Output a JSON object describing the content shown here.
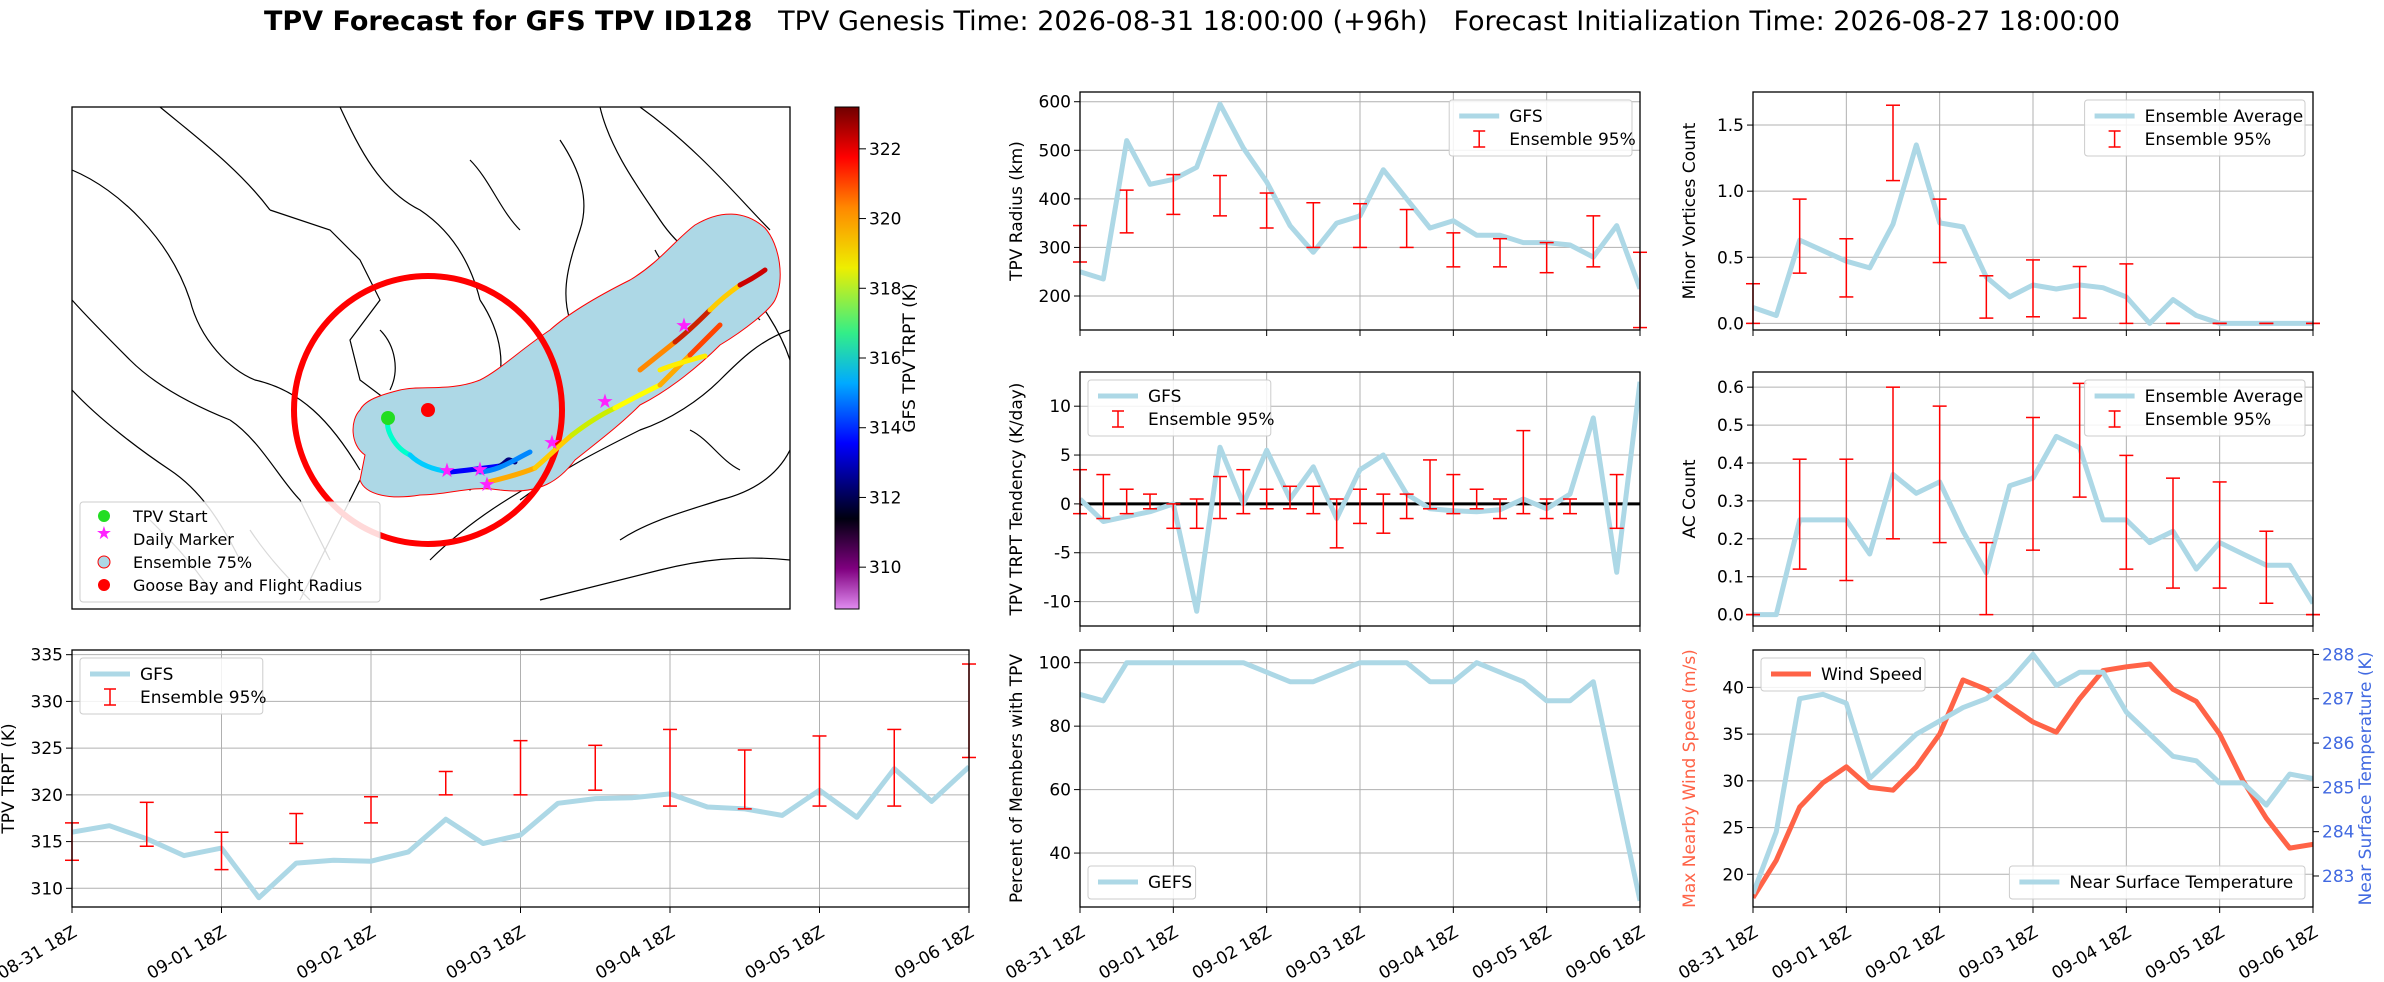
{
  "figure": {
    "title_bold": "TPV Forecast for GFS TPV ID128",
    "title_genesis": "TPV Genesis Time: 2026-08-31 18:00:00 (+96h)",
    "title_init": "Forecast Initialization Time: 2026-08-27 18:00:00"
  },
  "time_ticks": [
    "08-31 18Z",
    "09-01 18Z",
    "09-02 18Z",
    "09-03 18Z",
    "09-04 18Z",
    "09-05 18Z",
    "09-06 18Z"
  ],
  "map": {
    "colorbar": {
      "label": "GFS TPV TRPT (K)",
      "ticks": [
        310,
        312,
        314,
        316,
        318,
        320,
        322
      ],
      "range": [
        308.8,
        323.2
      ]
    },
    "legend": [
      "TPV Start",
      "Daily Marker",
      "Ensemble 75%",
      "Goose Bay and Flight Radius"
    ],
    "colors": {
      "start": "#22dd22",
      "daily": "#ff22ff",
      "ensemble": "#add8e6",
      "goose_bay": "#ff0000"
    }
  },
  "chart_data": [
    {
      "id": "radius",
      "type": "line",
      "ylabel": "TPV Radius (km)",
      "ylim": [
        130,
        620
      ],
      "yticks": [
        200,
        300,
        400,
        500,
        600
      ],
      "legend": [
        "GFS",
        "Ensemble 95%"
      ],
      "legend_pos": "top-right",
      "series": [
        {
          "name": "GFS",
          "color": "#add8e6",
          "values": [
            250,
            235,
            520,
            430,
            440,
            465,
            595,
            505,
            435,
            345,
            290,
            350,
            365,
            460,
            400,
            340,
            355,
            325,
            325,
            310,
            310,
            305,
            280,
            345,
            215
          ]
        }
      ],
      "errorbars": [
        {
          "i": 0,
          "lo": 270,
          "hi": 345
        },
        {
          "i": 2,
          "lo": 330,
          "hi": 418
        },
        {
          "i": 4,
          "lo": 368,
          "hi": 450
        },
        {
          "i": 6,
          "lo": 365,
          "hi": 448
        },
        {
          "i": 8,
          "lo": 340,
          "hi": 412
        },
        {
          "i": 10,
          "lo": 300,
          "hi": 392
        },
        {
          "i": 12,
          "lo": 300,
          "hi": 390
        },
        {
          "i": 14,
          "lo": 300,
          "hi": 378
        },
        {
          "i": 16,
          "lo": 260,
          "hi": 330
        },
        {
          "i": 18,
          "lo": 260,
          "hi": 318
        },
        {
          "i": 20,
          "lo": 248,
          "hi": 310
        },
        {
          "i": 22,
          "lo": 260,
          "hi": 365
        },
        {
          "i": 24,
          "lo": 135,
          "hi": 290
        }
      ]
    },
    {
      "id": "minor",
      "type": "line",
      "ylabel": "Minor Vortices Count",
      "ylim": [
        -0.05,
        1.75
      ],
      "yticks": [
        0.0,
        0.5,
        1.0,
        1.5
      ],
      "decimals": 1,
      "legend": [
        "Ensemble Average",
        "Ensemble 95%"
      ],
      "legend_pos": "top-right",
      "series": [
        {
          "name": "Ensemble Average",
          "color": "#add8e6",
          "values": [
            0.12,
            0.06,
            0.63,
            0.55,
            0.47,
            0.42,
            0.75,
            1.35,
            0.76,
            0.73,
            0.35,
            0.2,
            0.29,
            0.26,
            0.29,
            0.27,
            0.2,
            0.0,
            0.18,
            0.06,
            0.0,
            0.0,
            0.0,
            0.0,
            0.0
          ]
        }
      ],
      "errorbars": [
        {
          "i": 0,
          "lo": 0.0,
          "hi": 0.3
        },
        {
          "i": 2,
          "lo": 0.38,
          "hi": 0.94
        },
        {
          "i": 4,
          "lo": 0.2,
          "hi": 0.64
        },
        {
          "i": 6,
          "lo": 1.08,
          "hi": 1.65
        },
        {
          "i": 8,
          "lo": 0.46,
          "hi": 0.94
        },
        {
          "i": 10,
          "lo": 0.04,
          "hi": 0.36
        },
        {
          "i": 12,
          "lo": 0.05,
          "hi": 0.48
        },
        {
          "i": 14,
          "lo": 0.04,
          "hi": 0.43
        },
        {
          "i": 16,
          "lo": 0.0,
          "hi": 0.45
        },
        {
          "i": 18,
          "lo": 0.0,
          "hi": 0.0
        },
        {
          "i": 20,
          "lo": 0.0,
          "hi": 0.0
        },
        {
          "i": 22,
          "lo": 0.0,
          "hi": 0.0
        },
        {
          "i": 24,
          "lo": 0.0,
          "hi": 0.0
        }
      ]
    },
    {
      "id": "tendency",
      "type": "line",
      "ylabel": "TPV TRPT Tendency (K/day)",
      "ylim": [
        -12.5,
        13.5
      ],
      "yticks": [
        -10,
        -5,
        0,
        5,
        10
      ],
      "zero_line": true,
      "legend": [
        "GFS",
        "Ensemble 95%"
      ],
      "legend_pos": "top-left",
      "series": [
        {
          "name": "GFS",
          "color": "#add8e6",
          "values": [
            0.5,
            -1.8,
            -1.3,
            -0.8,
            0.0,
            -11.0,
            5.8,
            0.0,
            5.5,
            0.5,
            3.8,
            -1.5,
            3.5,
            5.0,
            1.0,
            -0.5,
            -0.7,
            -0.8,
            -0.6,
            0.5,
            -0.5,
            1.0,
            8.8,
            -7.0,
            12.5
          ]
        }
      ],
      "errorbars": [
        {
          "i": 0,
          "lo": -1.0,
          "hi": 3.5
        },
        {
          "i": 1,
          "lo": -1.5,
          "hi": 3.0
        },
        {
          "i": 2,
          "lo": -1.0,
          "hi": 1.5
        },
        {
          "i": 3,
          "lo": -0.5,
          "hi": 1.0
        },
        {
          "i": 4,
          "lo": -2.5,
          "hi": 0.0
        },
        {
          "i": 5,
          "lo": -2.5,
          "hi": 0.5
        },
        {
          "i": 6,
          "lo": -1.5,
          "hi": 2.8
        },
        {
          "i": 7,
          "lo": -1.0,
          "hi": 3.5
        },
        {
          "i": 8,
          "lo": -0.5,
          "hi": 1.5
        },
        {
          "i": 9,
          "lo": -0.5,
          "hi": 1.8
        },
        {
          "i": 10,
          "lo": -1.0,
          "hi": 1.8
        },
        {
          "i": 11,
          "lo": -4.5,
          "hi": 0.5
        },
        {
          "i": 12,
          "lo": -2.0,
          "hi": 1.5
        },
        {
          "i": 13,
          "lo": -3.0,
          "hi": 1.0
        },
        {
          "i": 14,
          "lo": -1.5,
          "hi": 1.0
        },
        {
          "i": 15,
          "lo": -0.5,
          "hi": 4.5
        },
        {
          "i": 16,
          "lo": -1.0,
          "hi": 3.0
        },
        {
          "i": 17,
          "lo": -0.5,
          "hi": 1.5
        },
        {
          "i": 18,
          "lo": -1.5,
          "hi": 0.5
        },
        {
          "i": 19,
          "lo": -1.0,
          "hi": 7.5
        },
        {
          "i": 20,
          "lo": -1.5,
          "hi": 0.5
        },
        {
          "i": 21,
          "lo": -1.0,
          "hi": 0.5
        },
        {
          "i": 23,
          "lo": -2.5,
          "hi": 3.0
        }
      ]
    },
    {
      "id": "ac",
      "type": "line",
      "ylabel": "AC Count",
      "ylim": [
        -0.03,
        0.64
      ],
      "yticks": [
        0.0,
        0.1,
        0.2,
        0.3,
        0.4,
        0.5,
        0.6
      ],
      "decimals": 1,
      "legend": [
        "Ensemble Average",
        "Ensemble 95%"
      ],
      "legend_pos": "top-right",
      "series": [
        {
          "name": "Ensemble Average",
          "color": "#add8e6",
          "values": [
            0.0,
            0.0,
            0.25,
            0.25,
            0.25,
            0.16,
            0.37,
            0.32,
            0.35,
            0.22,
            0.11,
            0.34,
            0.36,
            0.47,
            0.44,
            0.25,
            0.25,
            0.19,
            0.22,
            0.12,
            0.19,
            0.16,
            0.13,
            0.13,
            0.03
          ]
        }
      ],
      "errorbars": [
        {
          "i": 0,
          "lo": 0.0,
          "hi": 0.0
        },
        {
          "i": 2,
          "lo": 0.12,
          "hi": 0.41
        },
        {
          "i": 4,
          "lo": 0.09,
          "hi": 0.41
        },
        {
          "i": 6,
          "lo": 0.2,
          "hi": 0.6
        },
        {
          "i": 8,
          "lo": 0.19,
          "hi": 0.55
        },
        {
          "i": 10,
          "lo": 0.0,
          "hi": 0.19
        },
        {
          "i": 12,
          "lo": 0.17,
          "hi": 0.52
        },
        {
          "i": 14,
          "lo": 0.31,
          "hi": 0.61
        },
        {
          "i": 16,
          "lo": 0.12,
          "hi": 0.42
        },
        {
          "i": 18,
          "lo": 0.07,
          "hi": 0.36
        },
        {
          "i": 20,
          "lo": 0.07,
          "hi": 0.35
        },
        {
          "i": 22,
          "lo": 0.03,
          "hi": 0.22
        },
        {
          "i": 24,
          "lo": 0.0,
          "hi": 0.0
        }
      ]
    },
    {
      "id": "trpt",
      "type": "line",
      "ylabel": "TPV TRPT (K)",
      "ylim": [
        308,
        335.5
      ],
      "yticks": [
        310,
        315,
        320,
        325,
        330,
        335
      ],
      "legend": [
        "GFS",
        "Ensemble 95%"
      ],
      "legend_pos": "top-left",
      "series": [
        {
          "name": "GFS",
          "color": "#add8e6",
          "values": [
            316.0,
            316.7,
            315.3,
            313.5,
            314.3,
            309.0,
            312.7,
            313.0,
            312.9,
            313.9,
            317.4,
            314.8,
            315.7,
            319.1,
            319.6,
            319.7,
            320.1,
            318.7,
            318.5,
            317.8,
            320.5,
            317.6,
            322.8,
            319.3,
            323.0
          ]
        }
      ],
      "errorbars": [
        {
          "i": 0,
          "lo": 313.0,
          "hi": 317.0
        },
        {
          "i": 2,
          "lo": 314.5,
          "hi": 319.2
        },
        {
          "i": 4,
          "lo": 312.0,
          "hi": 316.0
        },
        {
          "i": 6,
          "lo": 314.8,
          "hi": 318.0
        },
        {
          "i": 8,
          "lo": 317.0,
          "hi": 319.8
        },
        {
          "i": 10,
          "lo": 320.0,
          "hi": 322.5
        },
        {
          "i": 12,
          "lo": 320.0,
          "hi": 325.8
        },
        {
          "i": 14,
          "lo": 320.5,
          "hi": 325.3
        },
        {
          "i": 16,
          "lo": 318.8,
          "hi": 327.0
        },
        {
          "i": 18,
          "lo": 318.5,
          "hi": 324.8
        },
        {
          "i": 20,
          "lo": 318.8,
          "hi": 326.3
        },
        {
          "i": 22,
          "lo": 318.8,
          "hi": 327.0
        },
        {
          "i": 24,
          "lo": 324.0,
          "hi": 334.0
        }
      ]
    },
    {
      "id": "members",
      "type": "line",
      "ylabel": "Percent of Members with TPV",
      "ylim": [
        23,
        104
      ],
      "yticks": [
        40,
        60,
        80,
        100
      ],
      "legend": [
        "GEFS"
      ],
      "legend_pos": "bottom-left",
      "series": [
        {
          "name": "GEFS",
          "color": "#add8e6",
          "values": [
            90,
            88,
            100,
            100,
            100,
            100,
            100,
            100,
            97,
            94,
            94,
            97,
            100,
            100,
            100,
            94,
            94,
            100,
            97,
            94,
            88,
            88,
            94,
            25
          ]
        }
      ],
      "xs": [
        0,
        1,
        2,
        3,
        4,
        5,
        6,
        7,
        8,
        9,
        10,
        11,
        12,
        13,
        14,
        15,
        16,
        17,
        18,
        19,
        20,
        21,
        22,
        24
      ]
    },
    {
      "id": "wind_temp",
      "type": "line",
      "ylabel": "Max Nearby Wind Speed (m/s)",
      "ylim": [
        16.5,
        44
      ],
      "yticks": [
        20,
        25,
        30,
        35,
        40
      ],
      "ylabel2": "Near Surface Temperature (K)",
      "ylim2": [
        282.3,
        288.1
      ],
      "yticks2": [
        283,
        284,
        285,
        286,
        287,
        288
      ],
      "legend": [
        "Wind Speed"
      ],
      "legend_pos": "top-left",
      "legend2": [
        "Near Surface Temperature"
      ],
      "legend2_pos": "bottom-right",
      "series": [
        {
          "name": "Wind Speed",
          "color": "#ff6347",
          "axis": "left",
          "values": [
            17.5,
            21.5,
            27.2,
            29.8,
            31.5,
            29.3,
            29.0,
            31.5,
            35.0,
            40.8,
            39.8,
            38.0,
            36.3,
            35.2,
            38.8,
            41.8,
            42.2,
            42.5,
            39.8,
            38.5,
            35.0,
            30.0,
            26.0,
            22.8,
            23.2
          ]
        },
        {
          "name": "Near Surface Temperature",
          "color": "#add8e6",
          "axis": "right",
          "values": [
            282.6,
            284.0,
            287.0,
            287.1,
            286.9,
            285.2,
            285.7,
            286.2,
            286.5,
            286.8,
            287.0,
            287.4,
            288.0,
            287.3,
            287.6,
            287.6,
            286.7,
            286.2,
            285.7,
            285.6,
            285.1,
            285.1,
            284.6,
            285.3,
            285.2
          ]
        }
      ]
    }
  ]
}
